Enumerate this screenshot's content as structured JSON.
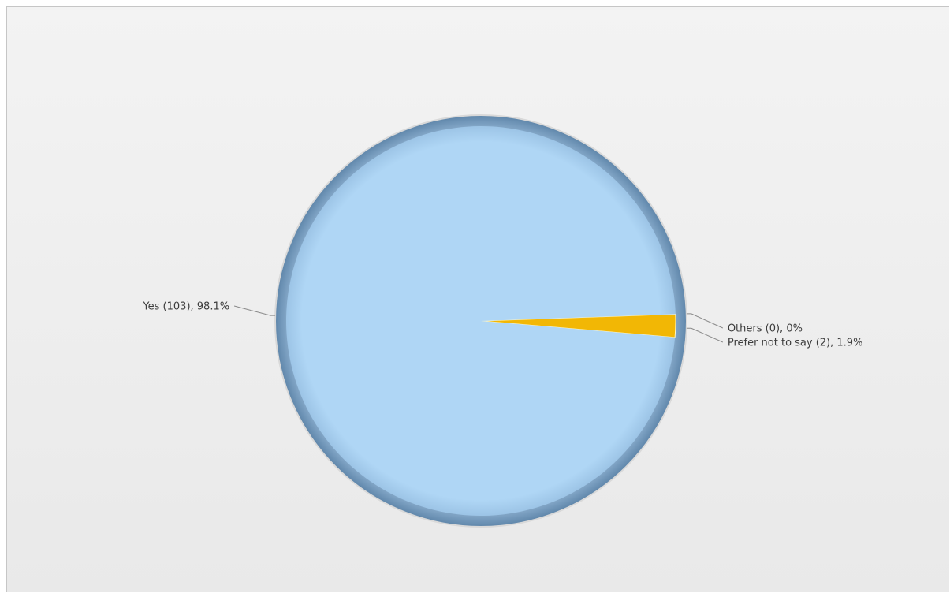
{
  "chart_data": {
    "type": "pie",
    "title": "",
    "slices": [
      {
        "label": "Yes",
        "count": 103,
        "percent": 98.1,
        "color": "#afd6f5",
        "display": "Yes (103), 98.1%"
      },
      {
        "label": "Others",
        "count": 0,
        "percent": 0,
        "color": "#f2c811",
        "display": "Others (0), 0%"
      },
      {
        "label": "Prefer not to say",
        "count": 2,
        "percent": 1.9,
        "color": "#f2b705",
        "display": "Prefer not to say (2), 1.9%"
      }
    ],
    "rim_color": "#6f95b8",
    "legend": "none"
  }
}
